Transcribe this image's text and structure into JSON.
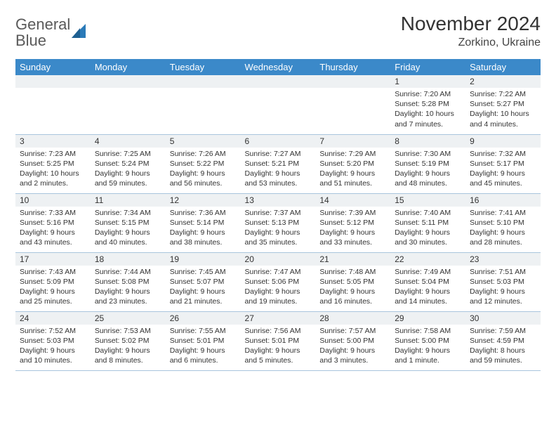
{
  "logo": {
    "text1": "General",
    "text2": "Blue"
  },
  "title": "November 2024",
  "location": "Zorkino, Ukraine",
  "colors": {
    "header_bg": "#3b89c9",
    "header_fg": "#ffffff",
    "daynum_bg": "#eef1f3",
    "border": "#a9c5dd",
    "logo_gray": "#5a5a5a",
    "logo_blue": "#2a7ab8"
  },
  "weekdays": [
    "Sunday",
    "Monday",
    "Tuesday",
    "Wednesday",
    "Thursday",
    "Friday",
    "Saturday"
  ],
  "weeks": [
    [
      null,
      null,
      null,
      null,
      null,
      {
        "n": "1",
        "sr": "7:20 AM",
        "ss": "5:28 PM",
        "dl": "10 hours and 7 minutes."
      },
      {
        "n": "2",
        "sr": "7:22 AM",
        "ss": "5:27 PM",
        "dl": "10 hours and 4 minutes."
      }
    ],
    [
      {
        "n": "3",
        "sr": "7:23 AM",
        "ss": "5:25 PM",
        "dl": "10 hours and 2 minutes."
      },
      {
        "n": "4",
        "sr": "7:25 AM",
        "ss": "5:24 PM",
        "dl": "9 hours and 59 minutes."
      },
      {
        "n": "5",
        "sr": "7:26 AM",
        "ss": "5:22 PM",
        "dl": "9 hours and 56 minutes."
      },
      {
        "n": "6",
        "sr": "7:27 AM",
        "ss": "5:21 PM",
        "dl": "9 hours and 53 minutes."
      },
      {
        "n": "7",
        "sr": "7:29 AM",
        "ss": "5:20 PM",
        "dl": "9 hours and 51 minutes."
      },
      {
        "n": "8",
        "sr": "7:30 AM",
        "ss": "5:19 PM",
        "dl": "9 hours and 48 minutes."
      },
      {
        "n": "9",
        "sr": "7:32 AM",
        "ss": "5:17 PM",
        "dl": "9 hours and 45 minutes."
      }
    ],
    [
      {
        "n": "10",
        "sr": "7:33 AM",
        "ss": "5:16 PM",
        "dl": "9 hours and 43 minutes."
      },
      {
        "n": "11",
        "sr": "7:34 AM",
        "ss": "5:15 PM",
        "dl": "9 hours and 40 minutes."
      },
      {
        "n": "12",
        "sr": "7:36 AM",
        "ss": "5:14 PM",
        "dl": "9 hours and 38 minutes."
      },
      {
        "n": "13",
        "sr": "7:37 AM",
        "ss": "5:13 PM",
        "dl": "9 hours and 35 minutes."
      },
      {
        "n": "14",
        "sr": "7:39 AM",
        "ss": "5:12 PM",
        "dl": "9 hours and 33 minutes."
      },
      {
        "n": "15",
        "sr": "7:40 AM",
        "ss": "5:11 PM",
        "dl": "9 hours and 30 minutes."
      },
      {
        "n": "16",
        "sr": "7:41 AM",
        "ss": "5:10 PM",
        "dl": "9 hours and 28 minutes."
      }
    ],
    [
      {
        "n": "17",
        "sr": "7:43 AM",
        "ss": "5:09 PM",
        "dl": "9 hours and 25 minutes."
      },
      {
        "n": "18",
        "sr": "7:44 AM",
        "ss": "5:08 PM",
        "dl": "9 hours and 23 minutes."
      },
      {
        "n": "19",
        "sr": "7:45 AM",
        "ss": "5:07 PM",
        "dl": "9 hours and 21 minutes."
      },
      {
        "n": "20",
        "sr": "7:47 AM",
        "ss": "5:06 PM",
        "dl": "9 hours and 19 minutes."
      },
      {
        "n": "21",
        "sr": "7:48 AM",
        "ss": "5:05 PM",
        "dl": "9 hours and 16 minutes."
      },
      {
        "n": "22",
        "sr": "7:49 AM",
        "ss": "5:04 PM",
        "dl": "9 hours and 14 minutes."
      },
      {
        "n": "23",
        "sr": "7:51 AM",
        "ss": "5:03 PM",
        "dl": "9 hours and 12 minutes."
      }
    ],
    [
      {
        "n": "24",
        "sr": "7:52 AM",
        "ss": "5:03 PM",
        "dl": "9 hours and 10 minutes."
      },
      {
        "n": "25",
        "sr": "7:53 AM",
        "ss": "5:02 PM",
        "dl": "9 hours and 8 minutes."
      },
      {
        "n": "26",
        "sr": "7:55 AM",
        "ss": "5:01 PM",
        "dl": "9 hours and 6 minutes."
      },
      {
        "n": "27",
        "sr": "7:56 AM",
        "ss": "5:01 PM",
        "dl": "9 hours and 5 minutes."
      },
      {
        "n": "28",
        "sr": "7:57 AM",
        "ss": "5:00 PM",
        "dl": "9 hours and 3 minutes."
      },
      {
        "n": "29",
        "sr": "7:58 AM",
        "ss": "5:00 PM",
        "dl": "9 hours and 1 minute."
      },
      {
        "n": "30",
        "sr": "7:59 AM",
        "ss": "4:59 PM",
        "dl": "8 hours and 59 minutes."
      }
    ]
  ]
}
